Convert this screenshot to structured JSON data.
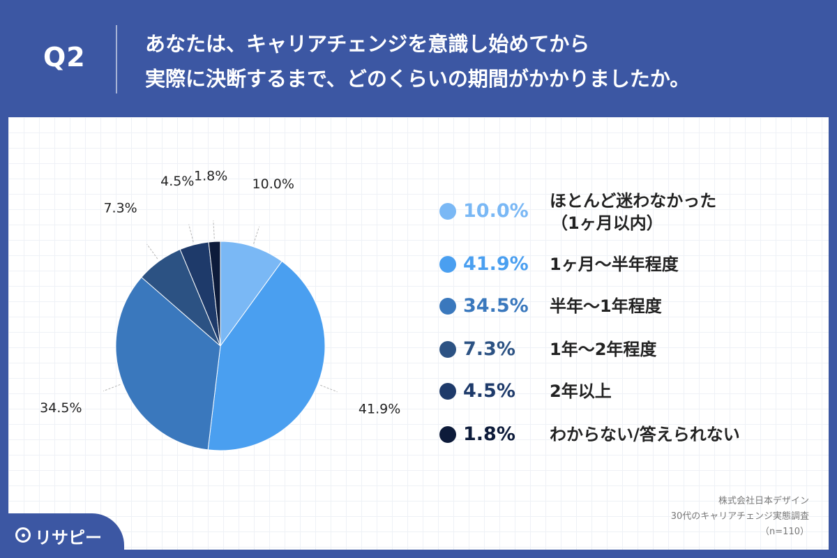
{
  "header": {
    "q_number": "Q2",
    "question_line1": "あなたは、キャリアチェンジを意識し始めてから",
    "question_line2": "実際に決断するまで、どのくらいの期間がかかりましたか。"
  },
  "chart_data": {
    "type": "pie",
    "categories": [
      "ほとんど迷わなかった（1ヶ月以内）",
      "1ヶ月〜半年程度",
      "半年〜1年程度",
      "1年〜2年程度",
      "2年以上",
      "わからない/答えられない"
    ],
    "values": [
      10.0,
      41.9,
      34.5,
      7.3,
      4.5,
      1.8
    ],
    "value_labels": [
      "10.0%",
      "41.9%",
      "34.5%",
      "7.3%",
      "4.5%",
      "1.8%"
    ],
    "colors": [
      "#7ab8f5",
      "#4a9ff0",
      "#3a78bd",
      "#2c5283",
      "#1e3a6a",
      "#0d1b3a"
    ],
    "start_angle": "12 o'clock",
    "direction": "clockwise",
    "legend_position": "right"
  },
  "legend": {
    "items": [
      {
        "pct": "10.0%",
        "line1": "ほとんど迷わなかった",
        "line2": "（1ヶ月以内）",
        "color": "#7ab8f5"
      },
      {
        "pct": "41.9%",
        "line1": "1ヶ月〜半年程度",
        "line2": "",
        "color": "#4a9ff0"
      },
      {
        "pct": "34.5%",
        "line1": "半年〜1年程度",
        "line2": "",
        "color": "#3a78bd"
      },
      {
        "pct": "7.3%",
        "line1": "1年〜2年程度",
        "line2": "",
        "color": "#2c5283"
      },
      {
        "pct": "4.5%",
        "line1": "2年以上",
        "line2": "",
        "color": "#1e3a6a"
      },
      {
        "pct": "1.8%",
        "line1": "わからない/答えられない",
        "line2": "",
        "color": "#0d1b3a"
      }
    ]
  },
  "source": {
    "line1": "株式会社日本デザイン",
    "line2": "30代のキャリアチェンジ実態調査",
    "line3": "（n=110）"
  },
  "brand": {
    "name": "リサピー"
  }
}
